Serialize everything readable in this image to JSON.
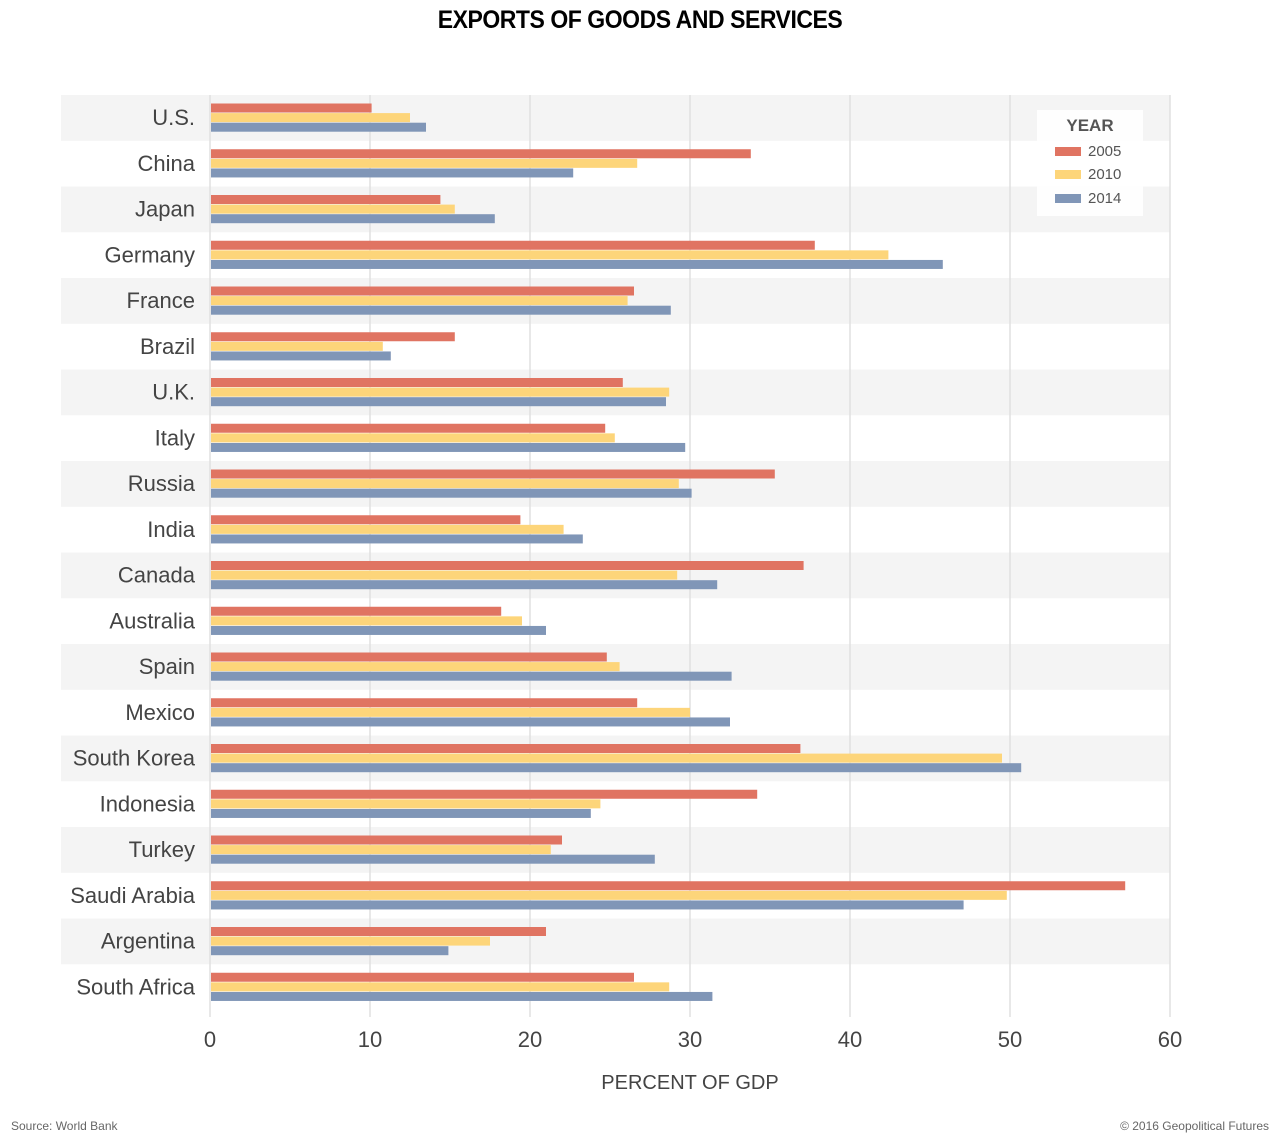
{
  "chart_data": {
    "type": "bar",
    "orientation": "horizontal",
    "title": "EXPORTS OF GOODS AND SERVICES",
    "xlabel": "PERCENT OF GDP",
    "ylabel": "",
    "xlim": [
      0,
      60
    ],
    "xticks": [
      0,
      10,
      20,
      30,
      40,
      50,
      60
    ],
    "grid": true,
    "legend": {
      "title": "YEAR",
      "position": "top-right"
    },
    "categories": [
      "U.S.",
      "China",
      "Japan",
      "Germany",
      "France",
      "Brazil",
      "U.K.",
      "Italy",
      "Russia",
      "India",
      "Canada",
      "Australia",
      "Spain",
      "Mexico",
      "South Korea",
      "Indonesia",
      "Turkey",
      "Saudi Arabia",
      "Argentina",
      "South Africa"
    ],
    "series": [
      {
        "name": "2005",
        "color": "#e07462",
        "values": [
          10.1,
          33.8,
          14.4,
          37.8,
          26.5,
          15.3,
          25.8,
          24.7,
          35.3,
          19.4,
          37.1,
          18.2,
          24.8,
          26.7,
          36.9,
          34.2,
          22.0,
          57.2,
          21.0,
          26.5
        ]
      },
      {
        "name": "2010",
        "color": "#fdd57a",
        "values": [
          12.5,
          26.7,
          15.3,
          42.4,
          26.1,
          10.8,
          28.7,
          25.3,
          29.3,
          22.1,
          29.2,
          19.5,
          25.6,
          30.0,
          49.5,
          24.4,
          21.3,
          49.8,
          17.5,
          28.7
        ]
      },
      {
        "name": "2014",
        "color": "#8096b7",
        "values": [
          13.5,
          22.7,
          17.8,
          45.8,
          28.8,
          11.3,
          28.5,
          29.7,
          30.1,
          23.3,
          31.7,
          21.0,
          32.6,
          32.5,
          50.7,
          23.8,
          27.8,
          47.1,
          14.9,
          31.4
        ]
      }
    ]
  },
  "footer": {
    "source": "Source: World Bank",
    "copyright": "© 2016 Geopolitical Futures"
  }
}
